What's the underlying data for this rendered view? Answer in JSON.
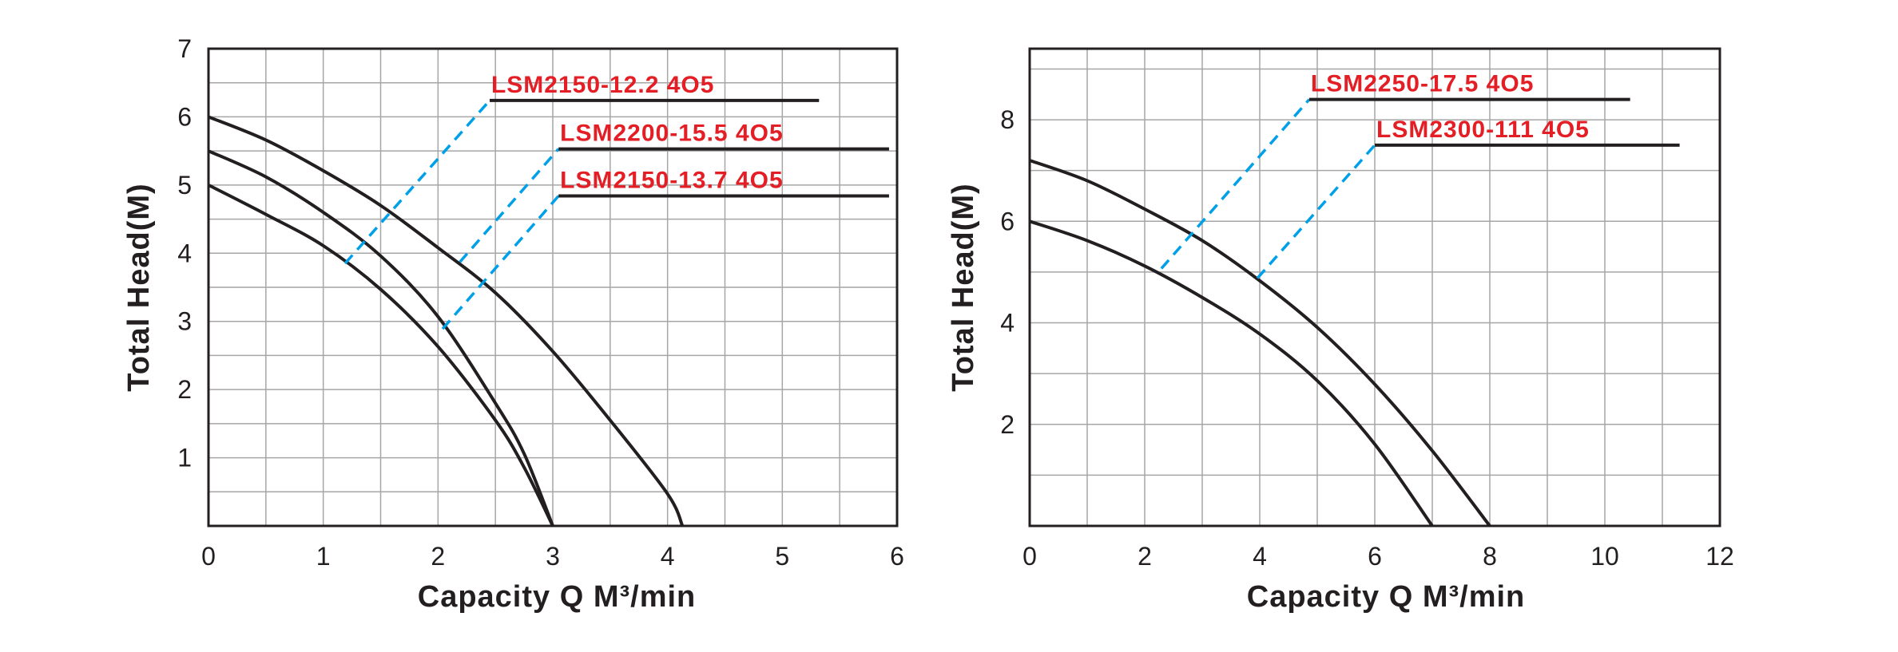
{
  "colors": {
    "curve": "#231f20",
    "grid": "#a6a6a6",
    "leader": "#00a0e9",
    "label": "#e31e24"
  },
  "chart_data": [
    {
      "type": "line",
      "xlabel": "Capacity   Q  M³/min",
      "ylabel": "Total Head(M)",
      "xlim": [
        0,
        6
      ],
      "ylim": [
        0,
        7
      ],
      "xticks": [
        0,
        1,
        2,
        3,
        4,
        5,
        6
      ],
      "yticks": [
        1,
        2,
        3,
        4,
        5,
        6,
        7
      ],
      "grid": true,
      "grid_step_x": 0.5,
      "grid_step_y": 0.5,
      "series": [
        {
          "name": "LSM2150-12.2  4O5",
          "x": [
            0,
            0.5,
            1,
            1.5,
            2,
            2.5,
            3,
            3.5,
            4,
            4.13
          ],
          "y": [
            6.0,
            5.66,
            5.21,
            4.7,
            4.08,
            3.42,
            2.56,
            1.55,
            0.47,
            0
          ]
        },
        {
          "name": "LSM2200-15.5  4O5",
          "x": [
            0,
            0.5,
            1,
            1.5,
            2,
            2.5,
            2.75,
            3
          ],
          "y": [
            5.5,
            5.12,
            4.6,
            3.96,
            3.07,
            1.8,
            1.06,
            0
          ]
        },
        {
          "name": "LSM2150-13.7  4O5",
          "x": [
            0,
            0.5,
            1,
            1.5,
            2,
            2.5,
            2.75,
            3
          ],
          "y": [
            5.0,
            4.57,
            4.11,
            3.47,
            2.63,
            1.55,
            0.86,
            0
          ]
        }
      ],
      "annotations": [
        {
          "text": "LSM2150-12.2  4O5",
          "from": [
            1.19,
            3.85
          ],
          "to": [
            2.45,
            6.24
          ],
          "underline_end": 5.32
        },
        {
          "text": "LSM2200-15.5  4O5",
          "from": [
            2.19,
            3.87
          ],
          "to": [
            3.05,
            5.53
          ],
          "underline_end": 5.93
        },
        {
          "text": "LSM2150-13.7  4O5",
          "from": [
            2.04,
            2.89
          ],
          "to": [
            3.05,
            4.84
          ],
          "underline_end": 5.93
        }
      ]
    },
    {
      "type": "line",
      "xlabel": "Capacity   Q  M³/min",
      "ylabel": "Total Head(M)",
      "xlim": [
        0,
        12
      ],
      "ylim": [
        0,
        9.4
      ],
      "xticks": [
        0,
        2,
        4,
        6,
        8,
        10,
        12
      ],
      "yticks": [
        2,
        4,
        6,
        8
      ],
      "grid": true,
      "grid_step_x": 1,
      "grid_step_y": 1,
      "series": [
        {
          "name": "LSM2250-17.5  4O5",
          "x": [
            0,
            1,
            2,
            3,
            4,
            5,
            6,
            7,
            8
          ],
          "y": [
            7.2,
            6.8,
            6.24,
            5.62,
            4.83,
            3.91,
            2.79,
            1.48,
            0
          ]
        },
        {
          "name": "LSM2300-111  4O5",
          "x": [
            0,
            1,
            2,
            3,
            4,
            5,
            6,
            7
          ],
          "y": [
            6.0,
            5.62,
            5.12,
            4.5,
            3.78,
            2.86,
            1.61,
            0
          ]
        }
      ],
      "annotations": [
        {
          "text": "LSM2250-17.5  4O5",
          "from": [
            2.29,
            5.07
          ],
          "to": [
            4.86,
            8.4
          ],
          "underline_end": 10.44
        },
        {
          "text": "LSM2300-111  4O5",
          "from": [
            3.96,
            4.88
          ],
          "to": [
            6.0,
            7.5
          ],
          "underline_end": 11.3
        }
      ]
    }
  ]
}
